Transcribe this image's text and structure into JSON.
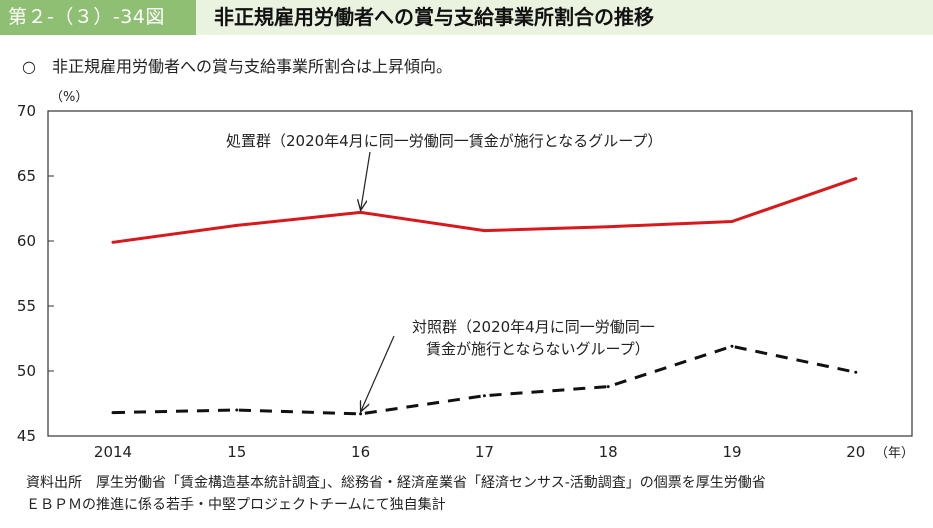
{
  "figure": {
    "label": "第２-（３）-34図",
    "title": "非正規雇用労働者への賞与支給事業所割合の推移",
    "summary_mark": "○",
    "summary": "非正規雇用労働者への賞与支給事業所割合は上昇傾向。"
  },
  "source": {
    "line1": "資料出所　厚生労働省「賃金構造基本統計調査」、総務省・経済産業省「経済センサス-活動調査」の個票を厚生労働省",
    "line2": "ＥＢＰＭの推進に係る若手・中堅プロジェクトチームにて独自集計"
  },
  "chart_data": {
    "type": "line",
    "x": [
      "2014",
      "15",
      "16",
      "17",
      "18",
      "19",
      "20"
    ],
    "x_unit": "（年）",
    "y_unit": "（%）",
    "ylim": [
      45,
      70
    ],
    "yticks": [
      45,
      50,
      55,
      60,
      65,
      70
    ],
    "grid": false,
    "series": [
      {
        "name": "処置群（2020年4月に同一労働同一賃金が施行となるグループ）",
        "label_lines": [
          "処置群（2020年4月に同一労働同一賃金が施行となるグループ）"
        ],
        "values": [
          59.9,
          61.2,
          62.2,
          60.8,
          61.1,
          61.5,
          64.8
        ],
        "color": "#d7191c",
        "style": "solid",
        "arrow_to_index": 2
      },
      {
        "name": "対照群（2020年4月に同一労働同一賃金が施行とならないグループ）",
        "label_lines": [
          "対照群（2020年4月に同一労働同一",
          "賃金が施行とならないグループ）"
        ],
        "values": [
          46.8,
          47.0,
          46.7,
          48.1,
          48.8,
          51.9,
          49.9
        ],
        "color": "#111111",
        "style": "dashed",
        "arrow_to_index": 2
      }
    ]
  }
}
